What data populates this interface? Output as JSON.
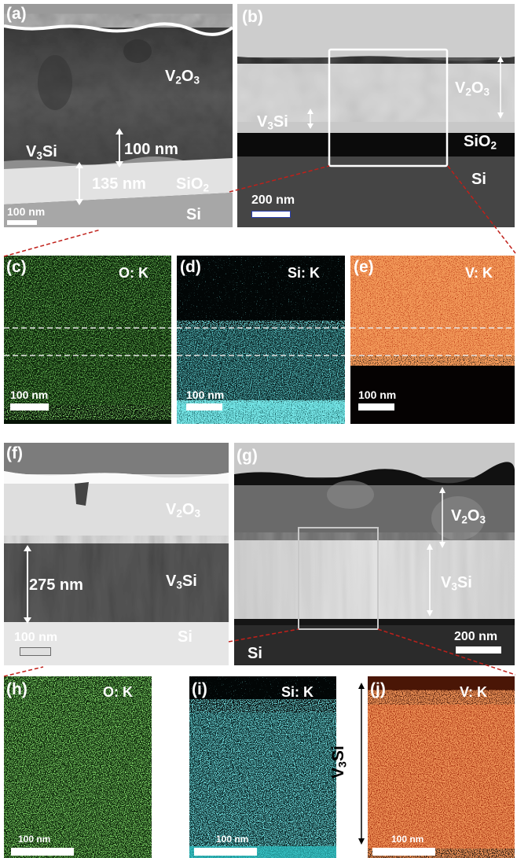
{
  "panels": {
    "a": {
      "label": "(a)",
      "texts": {
        "v2o3_a": "V",
        "v2o3_b": "2",
        "v2o3_c": "O",
        "v2o3_d": "3",
        "v3si_a": "V",
        "v3si_b": "3",
        "v3si_c": "Si",
        "t100": "100 nm",
        "t135": "135 nm",
        "sio2_a": "SiO",
        "sio2_b": "2",
        "si": "Si",
        "scale": "100 nm"
      }
    },
    "b": {
      "label": "(b)",
      "texts": {
        "v2o3_a": "V",
        "v2o3_b": "2",
        "v2o3_c": "O",
        "v2o3_d": "3",
        "v3si_a": "V",
        "v3si_b": "3",
        "v3si_c": "Si",
        "sio2_a": "SiO",
        "sio2_b": "2",
        "si": "Si",
        "scale": "200 nm"
      }
    },
    "c": {
      "label": "(c)",
      "element": "O: K",
      "scale": "100 nm"
    },
    "d": {
      "label": "(d)",
      "element": "Si: K",
      "scale": "100 nm"
    },
    "e": {
      "label": "(e)",
      "element": "V: K",
      "scale": "100 nm"
    },
    "f": {
      "label": "(f)",
      "texts": {
        "v2o3_a": "V",
        "v2o3_b": "2",
        "v2o3_c": "O",
        "v2o3_d": "3",
        "t275": "275 nm",
        "v3si_a": "V",
        "v3si_b": "3",
        "v3si_c": "Si",
        "si": "Si",
        "scale": "100 nm"
      }
    },
    "g": {
      "label": "(g)",
      "texts": {
        "v2o3_a": "V",
        "v2o3_b": "2",
        "v2o3_c": "O",
        "v2o3_d": "3",
        "v3si_a": "V",
        "v3si_b": "3",
        "v3si_c": "Si",
        "si": "Si",
        "scale": "200 nm"
      }
    },
    "h": {
      "label": "(h)",
      "element": "O: K",
      "scale": "100 nm"
    },
    "i": {
      "label": "(i)",
      "element": "Si: K",
      "scale": "100 nm"
    },
    "j": {
      "label": "(j)",
      "element": "V: K",
      "scale": "100 nm",
      "side_a": "V",
      "side_b": "3",
      "side_c": "Si"
    }
  },
  "colors": {
    "oxygen": "#3fbf2a",
    "silicon": "#2fc7c9",
    "vanadium": "#e0481a",
    "connector": "#c0201a"
  }
}
